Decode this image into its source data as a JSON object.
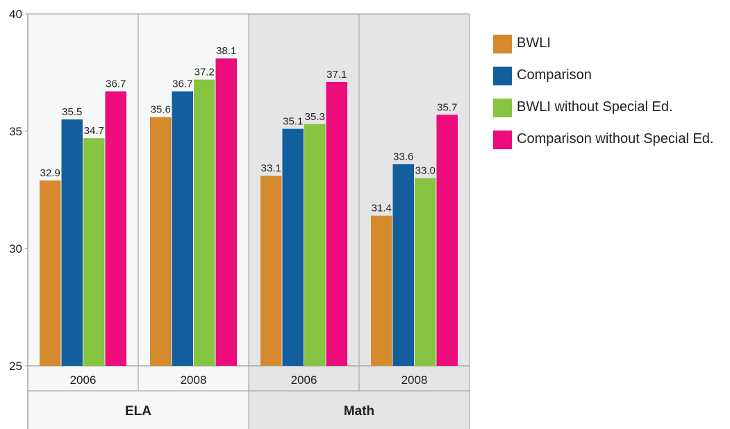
{
  "chart_data": {
    "type": "bar",
    "ylim": [
      25,
      40
    ],
    "y_ticks": [
      "25",
      "30",
      "35",
      "40"
    ],
    "groups": [
      {
        "name": "ELA",
        "years": [
          "2006",
          "2008"
        ]
      },
      {
        "name": "Math",
        "years": [
          "2006",
          "2008"
        ]
      }
    ],
    "categories": [
      "ELA 2006",
      "ELA 2008",
      "Math 2006",
      "Math 2008"
    ],
    "category_labels": [
      "2006",
      "2008",
      "2006",
      "2008"
    ],
    "series": [
      {
        "name": "BWLI",
        "color": "#d58a2e",
        "values": [
          32.9,
          35.6,
          33.1,
          31.4
        ],
        "labels": [
          "32.9",
          "35.6",
          "33.1",
          "31.4"
        ]
      },
      {
        "name": "Comparison",
        "color": "#135f9e",
        "values": [
          35.5,
          36.7,
          35.1,
          33.6
        ],
        "labels": [
          "35.5",
          "36.7",
          "35.1",
          "33.6"
        ]
      },
      {
        "name": "BWLI without Special Ed.",
        "color": "#86c441",
        "values": [
          34.7,
          37.2,
          35.3,
          33.0
        ],
        "labels": [
          "34.7",
          "37.2",
          "35.3",
          "33.0"
        ]
      },
      {
        "name": "Comparison without Special Ed.",
        "color": "#ec0c7c",
        "values": [
          36.7,
          38.1,
          37.1,
          35.7
        ],
        "labels": [
          "36.7",
          "38.1",
          "37.1",
          "35.7"
        ]
      }
    ],
    "grid": false,
    "legend_position": "right"
  },
  "colors": {
    "ela_background": "#f5f8f6",
    "math_background": "#e5e5e7",
    "frame": "#a8a8a8",
    "text": "#222222"
  }
}
